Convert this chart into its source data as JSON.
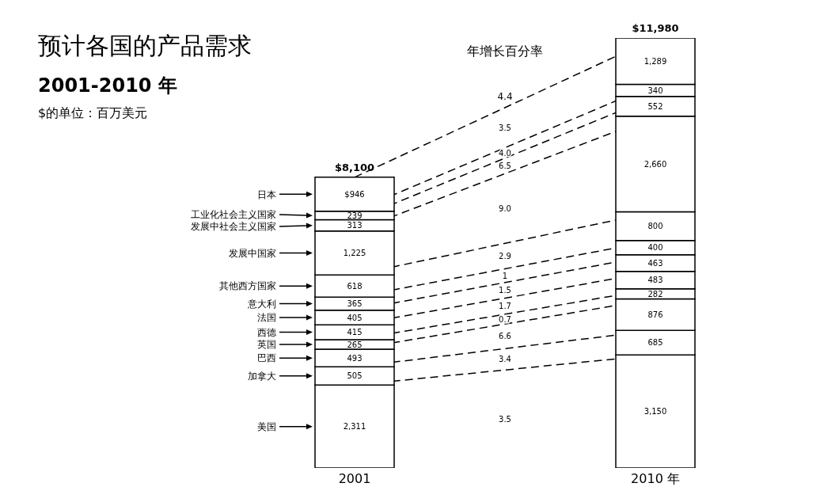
{
  "chart_data": {
    "type": "bar",
    "stacked": true,
    "title": "预计各国的产品需求",
    "subtitle": "2001-2010 年",
    "annotations": [
      "$的单位：百万美元",
      "年增长百分率",
      "4.4",
      "3.5",
      "4.0",
      "6.5",
      "9.0",
      "2.9",
      "1",
      "1.5",
      "1.7",
      "0.7",
      "6.6",
      "3.4",
      "3.5"
    ],
    "categories": [
      "2001",
      "2010 年"
    ],
    "series": [
      {
        "name": "美国",
        "color": "#ffffff",
        "values": [
          2311,
          3150
        ],
        "value_labels": [
          "2,311",
          "3,150"
        ]
      },
      {
        "name": "加拿大",
        "color": "#ffffff",
        "values": [
          505,
          685
        ],
        "value_labels": [
          "505",
          "685"
        ]
      },
      {
        "name": "巴西",
        "color": "#ffffff",
        "values": [
          493,
          876
        ],
        "value_labels": [
          "493",
          "876"
        ]
      },
      {
        "name": "英国",
        "color": "#ffffff",
        "values": [
          265,
          282
        ],
        "value_labels": [
          "265",
          "282"
        ]
      },
      {
        "name": "西德",
        "color": "#ffffff",
        "values": [
          415,
          483
        ],
        "value_labels": [
          "415",
          "483"
        ]
      },
      {
        "name": "法国",
        "color": "#ffffff",
        "values": [
          405,
          463
        ],
        "value_labels": [
          "405",
          "463"
        ]
      },
      {
        "name": "意大利",
        "color": "#ffffff",
        "values": [
          365,
          400
        ],
        "value_labels": [
          "365",
          "400"
        ]
      },
      {
        "name": "其他西方国家",
        "color": "#ffffff",
        "values": [
          618,
          800
        ],
        "value_labels": [
          "618",
          "800"
        ]
      },
      {
        "name": "发展中国家",
        "color": "#ffffff",
        "values": [
          1225,
          2660
        ],
        "value_labels": [
          "1,225",
          "2,660"
        ]
      },
      {
        "name": "发展中社会主义国家",
        "color": "#ffffff",
        "values": [
          313,
          552
        ],
        "value_labels": [
          "313",
          "552"
        ]
      },
      {
        "name": "工业化社会主义国家",
        "color": "#ffffff",
        "values": [
          239,
          340
        ],
        "value_labels": [
          "239",
          "340"
        ]
      },
      {
        "name": "日本",
        "color": "#ffffff",
        "values": [
          946,
          1289
        ],
        "value_labels": [
          "$946",
          "1,289"
        ]
      }
    ],
    "totals": [
      "$8,100",
      "$11,980"
    ],
    "legend": "left"
  }
}
